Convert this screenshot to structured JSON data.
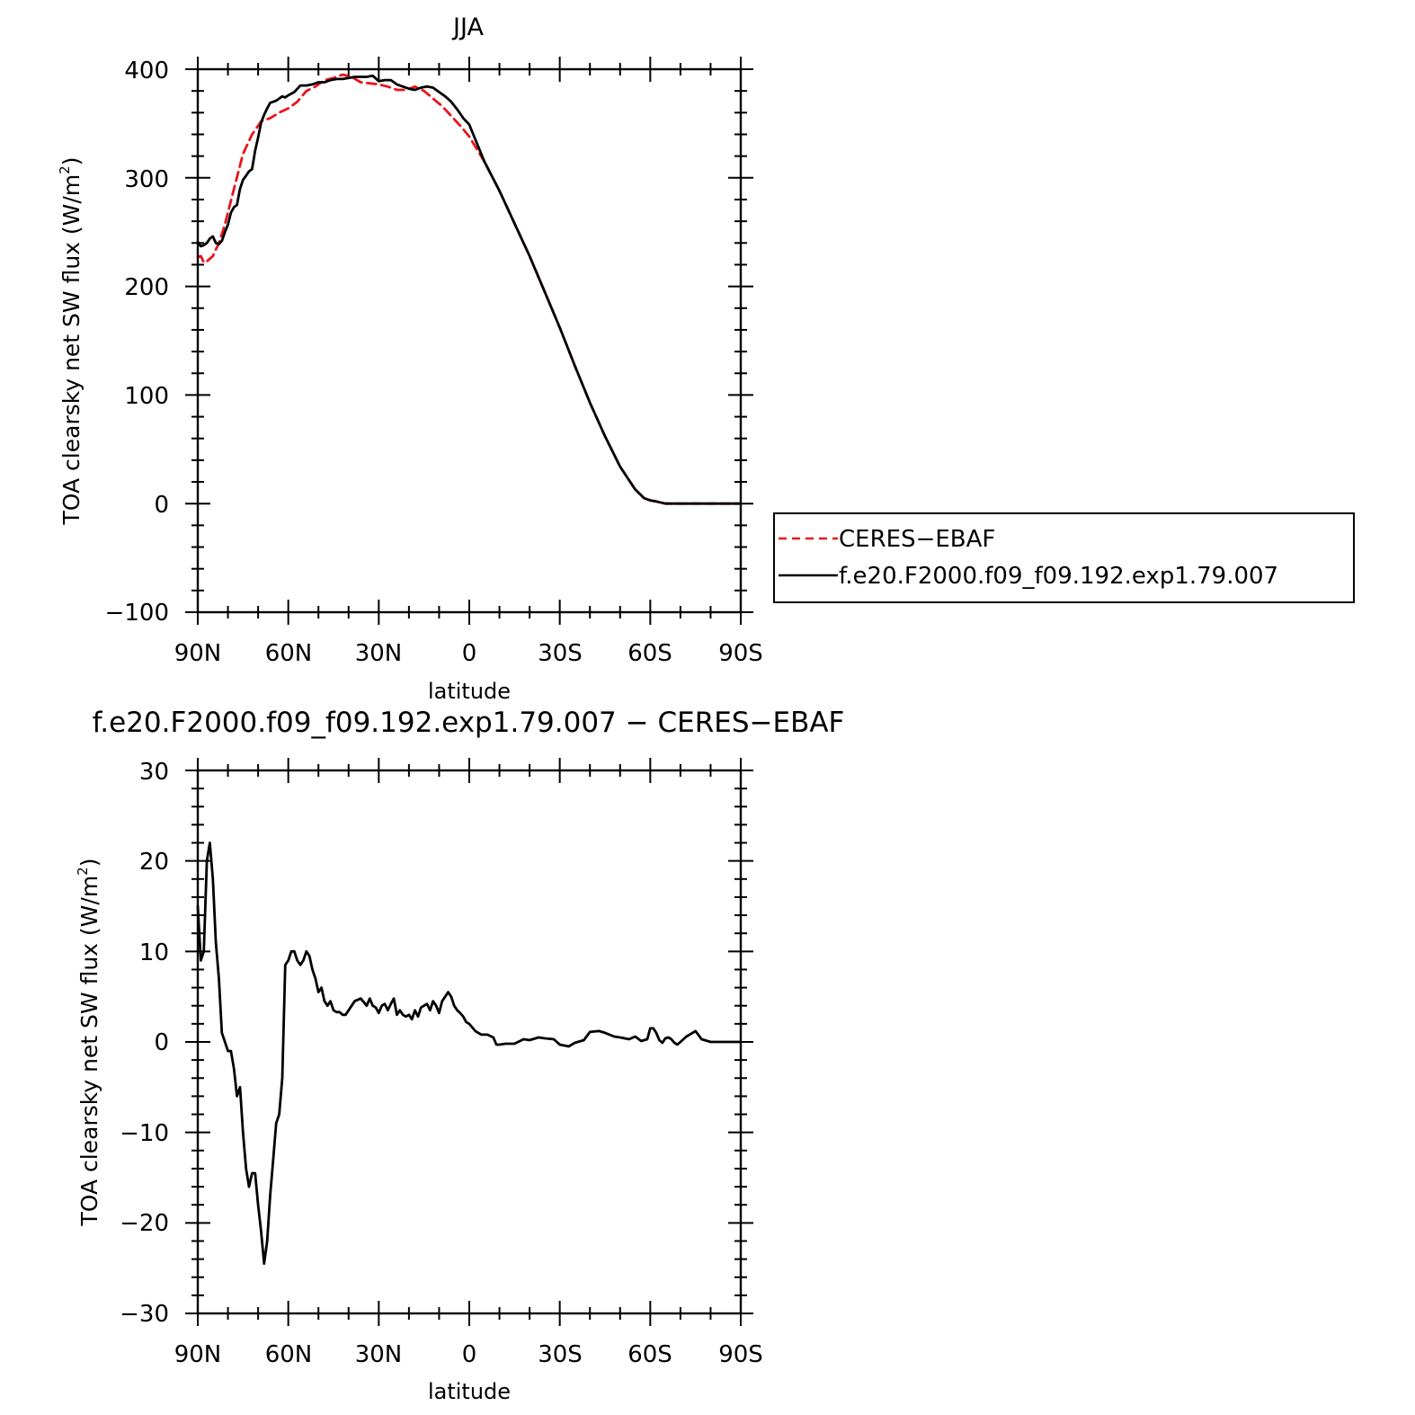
{
  "chart_data": [
    {
      "type": "line",
      "title": "JJA",
      "xlabel": "latitude",
      "ylabel": "TOA clearsky net SW flux (W/m²)",
      "ylabel_main": "TOA clearsky net SW flux (W/m",
      "ylabel_sup": "2",
      "ylabel_tail": ")",
      "xlim": [
        90,
        -90
      ],
      "ylim": [
        -100,
        400
      ],
      "yticks": [
        400,
        300,
        200,
        100,
        0,
        -100
      ],
      "ytick_labels": [
        "400",
        "300",
        "200",
        "100",
        "0",
        "−100"
      ],
      "xticks": [
        90,
        60,
        30,
        0,
        -30,
        -60,
        -90
      ],
      "xtick_labels": [
        "90N",
        "60N",
        "30N",
        "0",
        "30S",
        "60S",
        "90S"
      ],
      "legend_position": "right",
      "legend": [
        "CERES−EBAF",
        "f.e20.F2000.f09_f09.192.exp1.79.007"
      ],
      "series": [
        {
          "name": "CERES−EBAF",
          "color": "#e8161b",
          "dash": "dashed",
          "x": [
            90,
            89,
            88,
            87,
            85,
            83,
            81,
            78,
            75,
            72,
            69,
            66,
            63,
            60,
            57,
            54,
            51,
            48,
            45,
            42,
            39,
            36,
            33,
            30,
            27,
            24,
            21,
            18,
            15,
            12,
            9,
            6,
            3,
            0,
            -5,
            -10,
            -15,
            -20,
            -25,
            -30,
            -35,
            -40,
            -45,
            -50,
            -55,
            -58,
            -60,
            -62,
            -65,
            -67,
            -70,
            -75,
            -80,
            -85,
            -90
          ],
          "y": [
            227,
            228,
            222,
            223,
            228,
            240,
            257,
            290,
            322,
            340,
            352,
            355,
            360,
            364,
            370,
            380,
            384,
            390,
            392,
            395,
            393,
            388,
            387,
            386,
            384,
            381,
            381,
            384,
            380,
            373,
            366,
            357,
            348,
            338,
            315,
            288,
            258,
            228,
            195,
            162,
            127,
            93,
            62,
            34,
            13,
            5,
            3,
            2,
            0,
            0,
            0,
            0,
            0,
            0,
            0
          ]
        },
        {
          "name": "f.e20.F2000.f09_f09.192.exp1.79.007",
          "color": "#000000",
          "dash": "solid",
          "x": [
            90,
            89,
            88,
            87,
            86,
            85,
            84,
            83,
            82,
            81,
            80,
            79,
            78,
            77,
            76,
            75,
            74,
            73,
            72,
            71,
            70,
            69,
            68,
            67,
            66,
            65,
            64,
            63,
            62,
            61,
            60,
            58,
            56,
            54,
            52,
            50,
            48,
            46,
            44,
            42,
            40,
            38,
            36,
            34,
            32,
            30,
            28,
            26,
            24,
            22,
            20,
            18,
            16,
            14,
            12,
            10,
            8,
            6,
            4,
            2,
            0,
            -5,
            -10,
            -15,
            -20,
            -25,
            -30,
            -35,
            -40,
            -45,
            -50,
            -55,
            -58,
            -60,
            -62,
            -65,
            -67,
            -70,
            -75,
            -80,
            -85,
            -90
          ],
          "y": [
            241,
            237,
            238,
            240,
            244,
            246,
            240,
            239,
            242,
            250,
            257,
            268,
            273,
            275,
            290,
            298,
            302,
            306,
            308,
            325,
            337,
            351,
            358,
            364,
            369,
            370,
            371,
            373,
            375,
            374,
            376,
            379,
            385,
            385,
            386,
            388,
            388,
            390,
            391,
            391,
            392,
            393,
            393,
            393,
            394,
            389,
            390,
            390,
            386,
            384,
            382,
            381,
            383,
            384,
            383,
            379,
            375,
            370,
            363,
            355,
            349,
            315,
            288,
            258,
            228,
            195,
            162,
            127,
            93,
            62,
            34,
            13,
            5,
            3,
            2,
            0,
            0,
            0,
            0,
            0,
            0,
            0
          ]
        }
      ]
    },
    {
      "type": "line",
      "title": "f.e20.F2000.f09_f09.192.exp1.79.007 − CERES−EBAF",
      "xlabel": "latitude",
      "ylabel": "TOA clearsky net SW flux (W/m²)",
      "ylabel_main": "TOA clearsky net SW flux (W/m",
      "ylabel_sup": "2",
      "ylabel_tail": ")",
      "xlim": [
        90,
        -90
      ],
      "ylim": [
        -30,
        30
      ],
      "yticks": [
        30,
        20,
        10,
        0,
        -10,
        -20,
        -30
      ],
      "ytick_labels": [
        "30",
        "20",
        "10",
        "0",
        "−10",
        "−20",
        "−30"
      ],
      "xticks": [
        90,
        60,
        30,
        0,
        -30,
        -60,
        -90
      ],
      "xtick_labels": [
        "90N",
        "60N",
        "30N",
        "0",
        "30S",
        "60S",
        "90S"
      ],
      "series": [
        {
          "color": "#000000",
          "dash": "solid",
          "x": [
            90,
            89,
            88,
            87,
            86,
            85,
            84,
            83,
            82,
            81,
            80,
            79,
            78,
            77,
            76,
            75,
            74,
            73,
            72,
            71,
            70,
            69,
            68,
            67,
            66,
            65,
            64,
            63,
            62,
            61,
            60,
            59,
            58,
            57,
            56,
            55,
            54,
            53,
            52,
            51,
            50,
            49,
            48,
            47,
            46,
            45,
            44,
            43,
            42,
            41,
            40,
            38,
            36,
            34,
            33,
            32,
            31,
            30,
            29,
            28,
            27,
            26,
            25,
            24,
            23,
            22,
            21,
            20,
            19,
            18,
            17,
            16,
            15,
            14,
            13,
            12,
            11,
            10,
            9,
            8,
            7,
            6,
            5,
            4,
            3,
            2,
            1,
            0,
            -2,
            -4,
            -6,
            -8,
            -9,
            -10,
            -12,
            -15,
            -18,
            -20,
            -23,
            -25,
            -28,
            -30,
            -33,
            -35,
            -38,
            -40,
            -43,
            -45,
            -48,
            -50,
            -53,
            -55,
            -57,
            -59,
            -60,
            -61,
            -62,
            -63,
            -64,
            -65,
            -66,
            -67,
            -68,
            -69,
            -70,
            -72,
            -75,
            -77,
            -80,
            -85,
            -90
          ],
          "y": [
            15,
            9,
            10,
            20,
            22,
            18,
            11,
            7,
            1,
            0,
            -1,
            -1,
            -3,
            -6,
            -5,
            -10,
            -14,
            -16,
            -14.5,
            -14.5,
            -18,
            -21,
            -24.5,
            -22,
            -17,
            -13,
            -9,
            -8,
            -4,
            8.5,
            9,
            10,
            10,
            9,
            8.5,
            9,
            10,
            9.5,
            8,
            7,
            5.5,
            6,
            4.5,
            4,
            4.5,
            3.5,
            3.3,
            3.3,
            3,
            3,
            3.5,
            4.5,
            4.8,
            4,
            4.8,
            4,
            3.8,
            3.2,
            4,
            4.2,
            3.5,
            4.2,
            4.8,
            3,
            3.5,
            3,
            2.8,
            3,
            2.5,
            3.5,
            2.8,
            3.8,
            4,
            4.2,
            3.5,
            4.5,
            4,
            3.2,
            4.5,
            5,
            5.5,
            5,
            4,
            3.5,
            3.2,
            2.8,
            2.2,
            2,
            1.2,
            0.8,
            0.8,
            0.5,
            -0.3,
            -0.3,
            -0.2,
            -0.2,
            0.3,
            0.2,
            0.5,
            0.4,
            0.3,
            -0.3,
            -0.5,
            -0.1,
            0.2,
            1.1,
            1.2,
            1,
            0.6,
            0.5,
            0.3,
            0.6,
            0.1,
            0.3,
            1.5,
            1.5,
            1,
            0.2,
            -0.1,
            0.4,
            0.5,
            0.3,
            -0.1,
            -0.3,
            0,
            0.6,
            1.2,
            0.3,
            0,
            0,
            0
          ]
        }
      ]
    }
  ]
}
